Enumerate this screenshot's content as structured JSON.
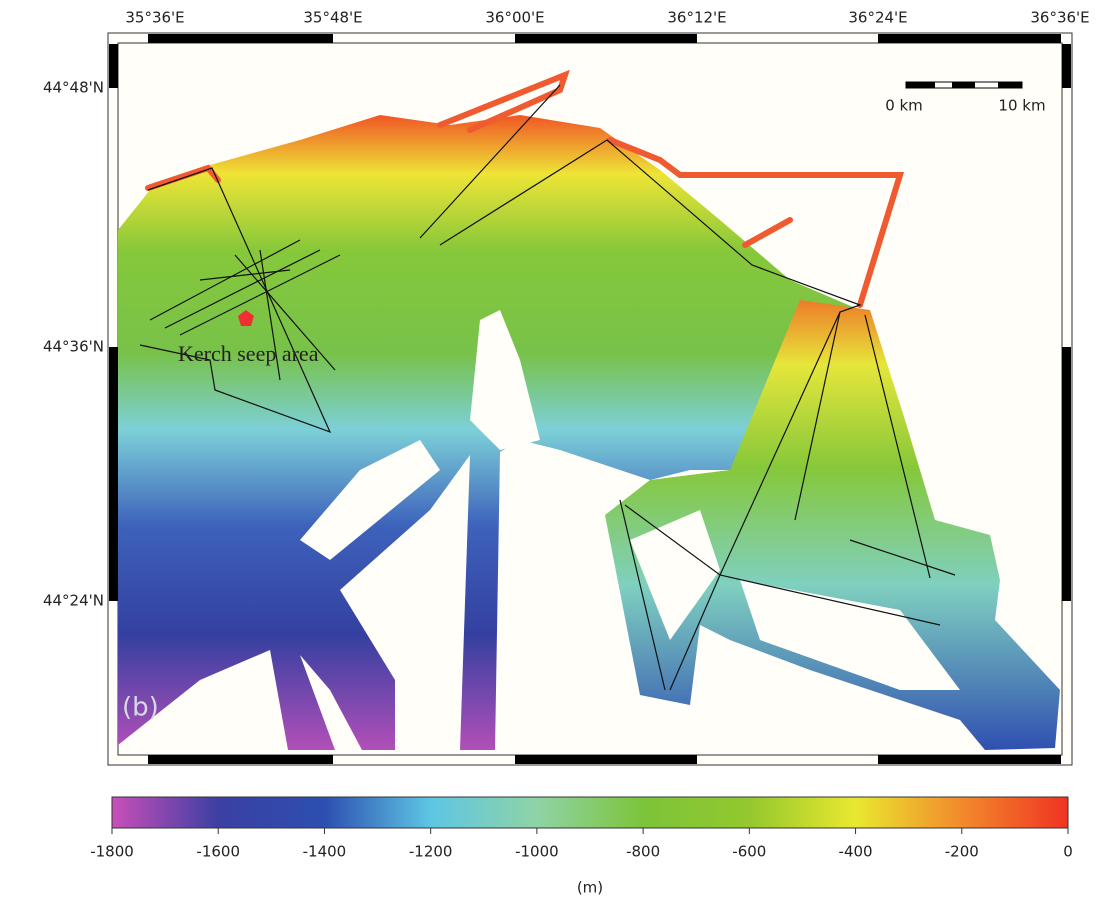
{
  "map": {
    "lon_labels": [
      "35°36'E",
      "35°48'E",
      "36°00'E",
      "36°12'E",
      "36°24'E",
      "36°36'E"
    ],
    "lat_labels": [
      "44°48'N",
      "44°36'N",
      "44°24'N"
    ],
    "scale_bar": {
      "left": "0 km",
      "right": "10 km"
    },
    "annotation": "Kerch seep area",
    "panel_label": "(b)",
    "colorbar": {
      "lim": [
        -1800,
        0
      ],
      "ticks": [
        -1800,
        -1600,
        -1400,
        -1200,
        -1000,
        -800,
        -600,
        -400,
        -200,
        0
      ],
      "colors": [
        "#c94fb9",
        "#3c3fa3",
        "#2c4fb0",
        "#5ec6e4",
        "#8fd3a6",
        "#7cc43a",
        "#94c82e",
        "#e9e82f",
        "#f28a2c",
        "#f03322"
      ],
      "unit": "(m)"
    }
  }
}
